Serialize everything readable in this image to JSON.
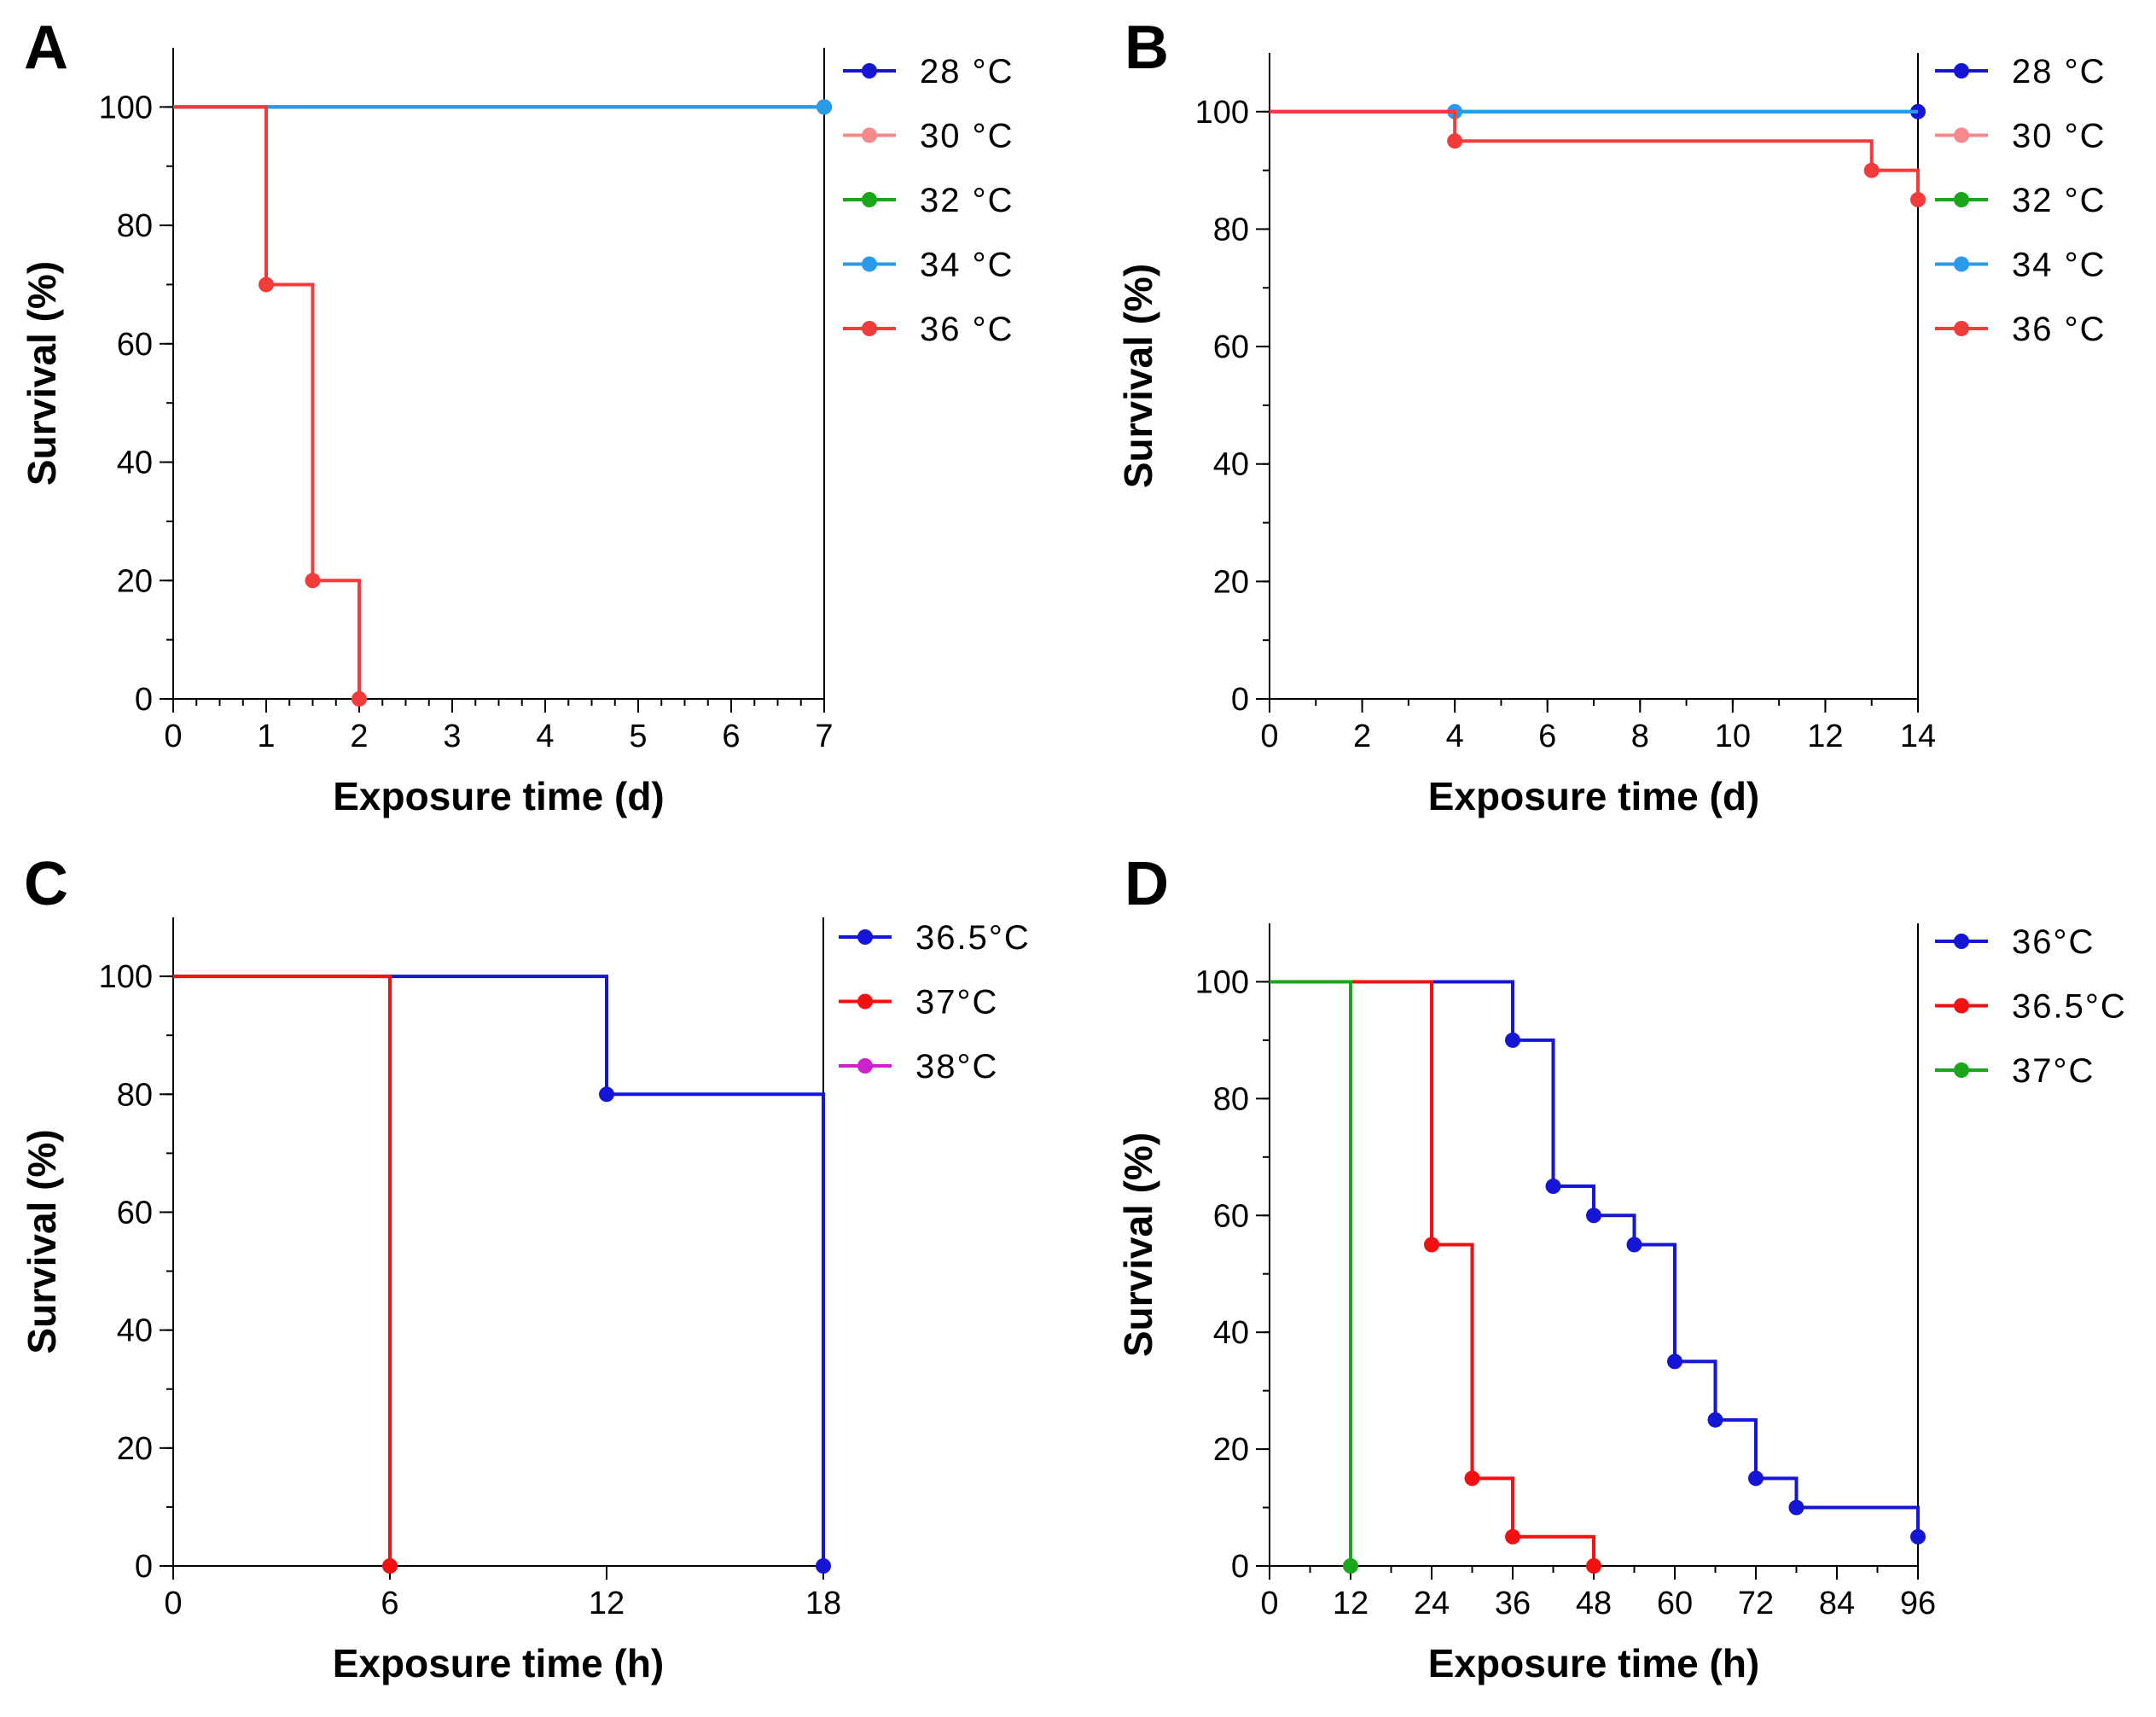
{
  "chart_data": [
    {
      "type": "line",
      "panel": "A",
      "xlabel": "Exposure time (d)",
      "ylabel": "Survival (%)",
      "xlim": [
        0,
        7
      ],
      "ylim": [
        0,
        110
      ],
      "xticks": [
        0,
        1,
        2,
        3,
        4,
        5,
        6,
        7
      ],
      "xtick_labels": [
        "0",
        "1",
        "2",
        "3",
        "4",
        "5",
        "6",
        "7"
      ],
      "yticks": [
        0,
        20,
        40,
        60,
        80,
        100
      ],
      "ytick_labels": [
        "0",
        "20",
        "40",
        "60",
        "80",
        "100"
      ],
      "x_minor": 0.25,
      "y_minor": 10,
      "grid": false,
      "legend_position": "right",
      "series": [
        {
          "name": "28 °C",
          "color": "#1515d6",
          "points": [
            [
              0,
              100
            ],
            [
              7,
              100
            ]
          ],
          "markers": [
            [
              7,
              100
            ]
          ]
        },
        {
          "name": "30 °C",
          "color": "#f58a8a",
          "points": [
            [
              0,
              100
            ],
            [
              7,
              100
            ]
          ],
          "markers": [
            [
              7,
              100
            ]
          ]
        },
        {
          "name": "32 °C",
          "color": "#1aa51a",
          "points": [
            [
              0,
              100
            ],
            [
              7,
              100
            ]
          ],
          "markers": [
            [
              7,
              100
            ]
          ]
        },
        {
          "name": "34 °C",
          "color": "#2a9bea",
          "points": [
            [
              0,
              100
            ],
            [
              7,
              100
            ]
          ],
          "markers": [
            [
              7,
              100
            ]
          ]
        },
        {
          "name": "36 °C",
          "color": "#f23b3b",
          "points": [
            [
              0,
              100
            ],
            [
              1,
              100
            ],
            [
              1,
              70
            ],
            [
              1.5,
              70
            ],
            [
              1.5,
              20
            ],
            [
              2,
              20
            ],
            [
              2,
              0
            ]
          ],
          "markers": [
            [
              1,
              70
            ],
            [
              1.5,
              20
            ],
            [
              2,
              0
            ]
          ]
        }
      ]
    },
    {
      "type": "line",
      "panel": "B",
      "xlabel": "Exposure time (d)",
      "ylabel": "Survival (%)",
      "xlim": [
        0,
        14
      ],
      "ylim": [
        0,
        110
      ],
      "xticks": [
        0,
        2,
        4,
        6,
        8,
        10,
        12,
        14
      ],
      "xtick_labels": [
        "0",
        "2",
        "4",
        "6",
        "8",
        "10",
        "12",
        "14"
      ],
      "yticks": [
        0,
        20,
        40,
        60,
        80,
        100
      ],
      "ytick_labels": [
        "0",
        "20",
        "40",
        "60",
        "80",
        "100"
      ],
      "x_minor": 1,
      "y_minor": 10,
      "grid": false,
      "legend_position": "right",
      "series": [
        {
          "name": "28 °C",
          "color": "#1515d6",
          "points": [
            [
              0,
              100
            ],
            [
              14,
              100
            ]
          ],
          "markers": [
            [
              14,
              100
            ]
          ]
        },
        {
          "name": "30 °C",
          "color": "#f58a8a",
          "points": [
            [
              0,
              100
            ],
            [
              14,
              100
            ]
          ],
          "markers": []
        },
        {
          "name": "32 °C",
          "color": "#1aa51a",
          "points": [
            [
              0,
              100
            ],
            [
              14,
              100
            ]
          ],
          "markers": []
        },
        {
          "name": "34 °C",
          "color": "#2a9bea",
          "points": [
            [
              0,
              100
            ],
            [
              14,
              100
            ]
          ],
          "markers": [
            [
              4,
              100
            ]
          ]
        },
        {
          "name": "36 °C",
          "color": "#f23b3b",
          "points": [
            [
              0,
              100
            ],
            [
              4,
              100
            ],
            [
              4,
              95
            ],
            [
              13,
              95
            ],
            [
              13,
              90
            ],
            [
              14,
              90
            ],
            [
              14,
              85
            ]
          ],
          "markers": [
            [
              4,
              95
            ],
            [
              13,
              90
            ],
            [
              14,
              85
            ]
          ]
        }
      ]
    },
    {
      "type": "line",
      "panel": "C",
      "xlabel": "Exposure time (h)",
      "ylabel": "Survival (%)",
      "xlim": [
        0,
        18
      ],
      "ylim": [
        0,
        110
      ],
      "xticks": [
        0,
        6,
        12,
        18
      ],
      "xtick_labels": [
        "0",
        "6",
        "12",
        "18"
      ],
      "yticks": [
        0,
        20,
        40,
        60,
        80,
        100
      ],
      "ytick_labels": [
        "0",
        "20",
        "40",
        "60",
        "80",
        "100"
      ],
      "x_minor": null,
      "y_minor": 10,
      "grid": false,
      "legend_position": "right",
      "series": [
        {
          "name": "36.5°C",
          "color": "#1515d6",
          "points": [
            [
              0,
              100
            ],
            [
              12,
              100
            ],
            [
              12,
              80
            ],
            [
              18,
              80
            ],
            [
              18,
              0
            ]
          ],
          "markers": [
            [
              12,
              80
            ],
            [
              18,
              0
            ]
          ]
        },
        {
          "name": "37°C",
          "color": "#f21010",
          "points": [
            [
              0,
              100
            ],
            [
              6,
              100
            ],
            [
              6,
              0
            ]
          ],
          "markers": [
            [
              6,
              0
            ]
          ]
        },
        {
          "name": "38°C",
          "color": "#cc22cc",
          "points": [],
          "markers": []
        }
      ]
    },
    {
      "type": "line",
      "panel": "D",
      "xlabel": "Exposure time (h)",
      "ylabel": "Survival (%)",
      "xlim": [
        0,
        96
      ],
      "ylim": [
        0,
        110
      ],
      "xticks": [
        0,
        12,
        24,
        36,
        48,
        60,
        72,
        84,
        96
      ],
      "xtick_labels": [
        "0",
        "12",
        "24",
        "36",
        "48",
        "60",
        "72",
        "84",
        "96"
      ],
      "yticks": [
        0,
        20,
        40,
        60,
        80,
        100
      ],
      "ytick_labels": [
        "0",
        "20",
        "40",
        "60",
        "80",
        "100"
      ],
      "x_minor": 6,
      "y_minor": 10,
      "grid": false,
      "legend_position": "right",
      "series": [
        {
          "name": "36°C",
          "color": "#1515d6",
          "points": [
            [
              0,
              100
            ],
            [
              36,
              100
            ],
            [
              36,
              90
            ],
            [
              42,
              90
            ],
            [
              42,
              65
            ],
            [
              48,
              65
            ],
            [
              48,
              60
            ],
            [
              54,
              60
            ],
            [
              54,
              55
            ],
            [
              60,
              55
            ],
            [
              60,
              35
            ],
            [
              66,
              35
            ],
            [
              66,
              25
            ],
            [
              72,
              25
            ],
            [
              72,
              15
            ],
            [
              78,
              15
            ],
            [
              78,
              10
            ],
            [
              96,
              10
            ],
            [
              96,
              5
            ]
          ],
          "markers": [
            [
              36,
              90
            ],
            [
              42,
              65
            ],
            [
              48,
              60
            ],
            [
              54,
              55
            ],
            [
              60,
              35
            ],
            [
              66,
              25
            ],
            [
              72,
              15
            ],
            [
              78,
              10
            ],
            [
              96,
              5
            ]
          ]
        },
        {
          "name": "36.5°C",
          "color": "#f21010",
          "points": [
            [
              0,
              100
            ],
            [
              24,
              100
            ],
            [
              24,
              55
            ],
            [
              30,
              55
            ],
            [
              30,
              15
            ],
            [
              36,
              15
            ],
            [
              36,
              5
            ],
            [
              48,
              5
            ],
            [
              48,
              0
            ]
          ],
          "markers": [
            [
              24,
              55
            ],
            [
              30,
              15
            ],
            [
              36,
              5
            ],
            [
              48,
              0
            ]
          ]
        },
        {
          "name": "37°C",
          "color": "#1aa51a",
          "points": [
            [
              0,
              100
            ],
            [
              12,
              100
            ],
            [
              12,
              0
            ]
          ],
          "markers": [
            [
              12,
              0
            ]
          ]
        }
      ]
    }
  ]
}
